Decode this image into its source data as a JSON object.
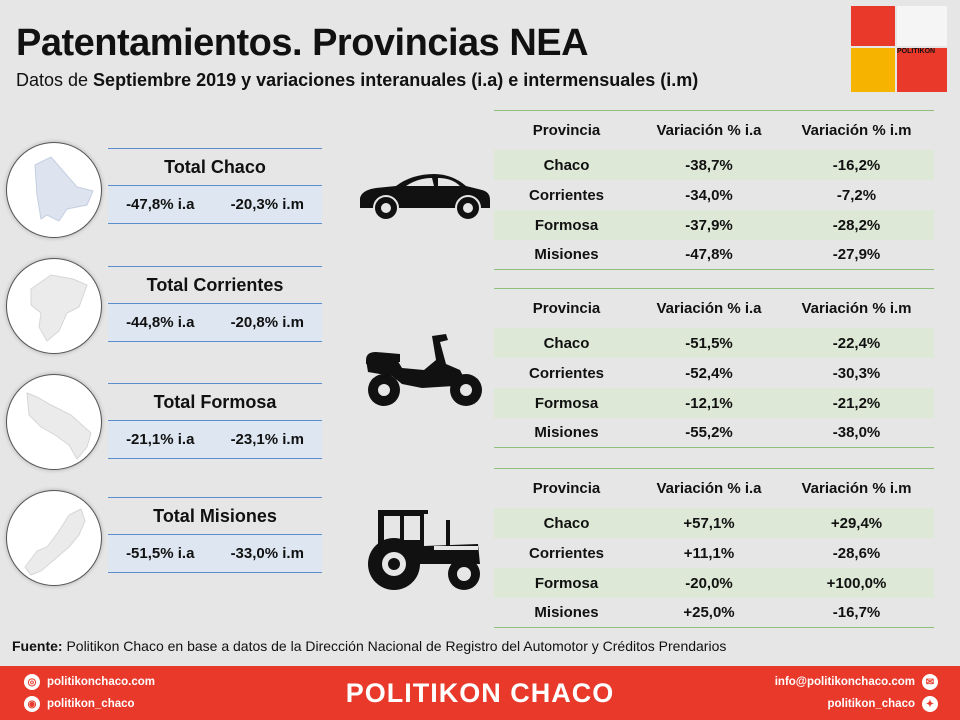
{
  "header": {
    "title": "Patentamientos. Provincias NEA",
    "subtitle_pre": "Datos de ",
    "subtitle_bold": "Septiembre 2019 y variaciones interanuales (i.a) e intermensuales (i.m)"
  },
  "logo": {
    "text": "POLITIKON",
    "colors": [
      "#e8392b",
      "#f6b400"
    ]
  },
  "totals": [
    {
      "label": "Total Chaco",
      "ia": "-47,8% i.a",
      "im": "-20,3% i.m"
    },
    {
      "label": "Total Corrientes",
      "ia": "-44,8% i.a",
      "im": "-20,8% i.m"
    },
    {
      "label": "Total Formosa",
      "ia": "-21,1% i.a",
      "im": "-23,1% i.m"
    },
    {
      "label": "Total Misiones",
      "ia": "-51,5% i.a",
      "im": "-33,0% i.m"
    }
  ],
  "table_headers": {
    "provincia": "Provincia",
    "ia": "Variación % i.a",
    "im": "Variación % i.m"
  },
  "tables": [
    {
      "vehicle": "car-icon",
      "rows": [
        {
          "prov": "Chaco",
          "ia": "-38,7%",
          "im": "-16,2%"
        },
        {
          "prov": "Corrientes",
          "ia": "-34,0%",
          "im": "-7,2%"
        },
        {
          "prov": "Formosa",
          "ia": "-37,9%",
          "im": "-28,2%"
        },
        {
          "prov": "Misiones",
          "ia": "-47,8%",
          "im": "-27,9%"
        }
      ]
    },
    {
      "vehicle": "motorcycle-icon",
      "rows": [
        {
          "prov": "Chaco",
          "ia": "-51,5%",
          "im": "-22,4%"
        },
        {
          "prov": "Corrientes",
          "ia": "-52,4%",
          "im": "-30,3%"
        },
        {
          "prov": "Formosa",
          "ia": "-12,1%",
          "im": "-21,2%"
        },
        {
          "prov": "Misiones",
          "ia": "-55,2%",
          "im": "-38,0%"
        }
      ]
    },
    {
      "vehicle": "tractor-icon",
      "rows": [
        {
          "prov": "Chaco",
          "ia": "+57,1%",
          "im": "+29,4%"
        },
        {
          "prov": "Corrientes",
          "ia": "+11,1%",
          "im": "-28,6%"
        },
        {
          "prov": "Formosa",
          "ia": "-20,0%",
          "im": "+100,0%"
        },
        {
          "prov": "Misiones",
          "ia": "+25,0%",
          "im": "-16,7%"
        }
      ]
    }
  ],
  "source": {
    "label": "Fuente:",
    "text": " Politikon Chaco en base a datos de la Dirección Nacional de Registro del Automotor y Créditos Prendarios"
  },
  "footer": {
    "brand": "POLITIKON CHACO",
    "web": "politikonchaco.com",
    "instagram": "politikon_chaco",
    "email": "info@politikonchaco.com",
    "twitter": "politikon_chaco"
  }
}
